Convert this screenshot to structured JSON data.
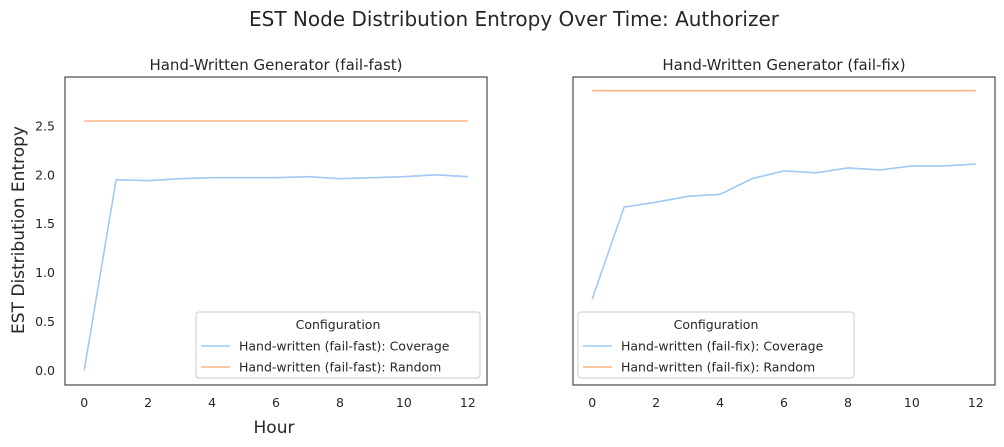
{
  "figure": {
    "title": "EST Node Distribution Entropy Over Time: Authorizer",
    "ylabel": "EST Distribution Entropy",
    "xlabel": "Hour"
  },
  "colors": {
    "coverage": "#a1c9f4",
    "random": "#ffb482",
    "axes": "#262626"
  },
  "chart_data": [
    {
      "type": "line",
      "title": "Hand-Written Generator (fail-fast)",
      "xlabel": "Hour",
      "ylabel": "EST Distribution Entropy",
      "xlim": [
        -0.6,
        12.6
      ],
      "ylim": [
        -0.15,
        3.0
      ],
      "xticks": [
        0,
        2,
        4,
        6,
        8,
        10,
        12
      ],
      "xtick_labels": [
        "0",
        "2",
        "4",
        "6",
        "8",
        "10",
        "12"
      ],
      "yticks": [
        0.0,
        0.5,
        1.0,
        1.5,
        2.0,
        2.5
      ],
      "ytick_labels": [
        "0.0",
        "0.5",
        "1.0",
        "1.5",
        "2.0",
        "2.5"
      ],
      "x": [
        0,
        1,
        2,
        3,
        4,
        5,
        6,
        7,
        8,
        9,
        10,
        11,
        12
      ],
      "series": [
        {
          "name": "Hand-written (fail-fast): Coverage",
          "color_key": "coverage",
          "values": [
            0.0,
            1.95,
            1.94,
            1.96,
            1.97,
            1.97,
            1.97,
            1.98,
            1.96,
            1.97,
            1.98,
            2.0,
            1.98
          ]
        },
        {
          "name": "Hand-written (fail-fast): Random",
          "color_key": "random",
          "values": [
            2.55,
            2.55,
            2.55,
            2.55,
            2.55,
            2.55,
            2.55,
            2.55,
            2.55,
            2.55,
            2.55,
            2.55,
            2.55
          ]
        }
      ],
      "legend": {
        "title": "Configuration",
        "placement": "lower-right"
      },
      "grid": false
    },
    {
      "type": "line",
      "title": "Hand-Written Generator (fail-fix)",
      "xlabel": "",
      "ylabel": "",
      "xlim": [
        -0.6,
        12.6
      ],
      "ylim": [
        -0.15,
        3.0
      ],
      "xticks": [
        0,
        2,
        4,
        6,
        8,
        10,
        12
      ],
      "xtick_labels": [
        "0",
        "2",
        "4",
        "6",
        "8",
        "10",
        "12"
      ],
      "yticks": [],
      "ytick_labels": [],
      "x": [
        0,
        1,
        2,
        3,
        4,
        5,
        6,
        7,
        8,
        9,
        10,
        11,
        12
      ],
      "series": [
        {
          "name": "Hand-written (fail-fix): Coverage",
          "color_key": "coverage",
          "values": [
            0.73,
            1.67,
            1.72,
            1.78,
            1.8,
            1.96,
            2.04,
            2.02,
            2.07,
            2.05,
            2.09,
            2.09,
            2.11
          ]
        },
        {
          "name": "Hand-written (fail-fix): Random",
          "color_key": "random",
          "values": [
            2.86,
            2.86,
            2.86,
            2.86,
            2.86,
            2.86,
            2.86,
            2.86,
            2.86,
            2.86,
            2.86,
            2.86,
            2.86
          ]
        }
      ],
      "legend": {
        "title": "Configuration",
        "placement": "lower-left"
      },
      "grid": false
    }
  ]
}
